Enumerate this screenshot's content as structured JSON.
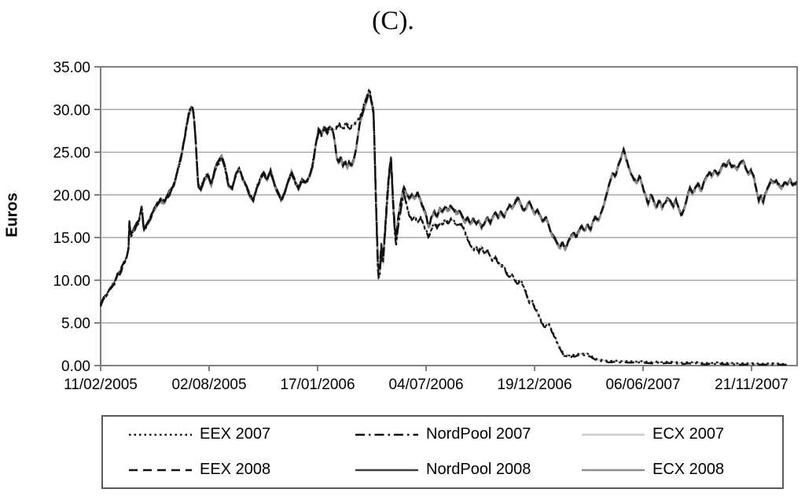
{
  "chart_data": {
    "type": "line",
    "title": "(C).",
    "xlabel": "",
    "ylabel": "Euros",
    "ylim": [
      0,
      35
    ],
    "grid": "horizontal",
    "legend_position": "bottom",
    "yticks": [
      35,
      30,
      25,
      20,
      15,
      10,
      5,
      0
    ],
    "ytick_labels": [
      "35.00",
      "30.00",
      "25.00",
      "20.00",
      "15.00",
      "10.00",
      "5.00",
      "0.00"
    ],
    "xtick_labels": [
      "11/02/2005",
      "02/08/2005",
      "17/01/2006",
      "04/07/2006",
      "19/12/2006",
      "06/06/2007",
      "21/11/2007"
    ],
    "axis_color": "#7f7f7f",
    "grid_color": "#999999",
    "series": [
      {
        "name": "EEX 2007",
        "group": "v2007",
        "color": "#111111",
        "dash": "2.5 4",
        "width": 2.2,
        "offset": 0.06,
        "start_t": 0,
        "end_t": 0.985,
        "z": 5,
        "seed": 11
      },
      {
        "name": "NordPool 2007",
        "group": "v2007",
        "color": "#111111",
        "dash": "12 5 2.5 5",
        "width": 2.2,
        "offset": -0.1,
        "start_t": 0,
        "end_t": 0.985,
        "z": 4,
        "seed": 12
      },
      {
        "name": "ECX 2007",
        "group": "v2007",
        "color": "#cbcbcb",
        "dash": "",
        "width": 2.4,
        "offset": 0,
        "start_t": 0.057,
        "end_t": 0.985,
        "z": 0,
        "seed": 13
      },
      {
        "name": "EEX 2008",
        "group": "v2008",
        "color": "#111111",
        "dash": "11 7",
        "width": 2.4,
        "offset": 0.08,
        "start_t": 0,
        "end_t": 1.0,
        "z": 3,
        "seed": 14
      },
      {
        "name": "NordPool 2008",
        "group": "v2008",
        "color": "#3d3d3d",
        "dash": "",
        "width": 2.0,
        "offset": 0.18,
        "start_t": 0,
        "end_t": 1.0,
        "z": 1,
        "seed": 15
      },
      {
        "name": "ECX 2008",
        "group": "v2008",
        "color": "#8d8d8d",
        "dash": "",
        "width": 2.6,
        "offset": -0.04,
        "start_t": 0.057,
        "end_t": 1.0,
        "z": 2,
        "seed": 16
      }
    ],
    "noise": {
      "group_amp": 0.4,
      "group_smooth": 2,
      "series_amp": 0.1,
      "series_smooth": 1,
      "samples": 800,
      "group_seeds": {
        "v2007": 7,
        "v2008": 8
      }
    },
    "anchors_common": [
      [
        0.0,
        7.2
      ],
      [
        0.004,
        7.8
      ],
      [
        0.008,
        8.1
      ],
      [
        0.012,
        8.9
      ],
      [
        0.016,
        9.3
      ],
      [
        0.02,
        9.7
      ],
      [
        0.024,
        10.7
      ],
      [
        0.028,
        10.9
      ],
      [
        0.032,
        11.9
      ],
      [
        0.036,
        12.3
      ],
      [
        0.04,
        13.5
      ],
      [
        0.0415,
        17.2
      ],
      [
        0.043,
        14.9
      ],
      [
        0.047,
        15.8
      ],
      [
        0.051,
        16.6
      ],
      [
        0.055,
        16.9
      ],
      [
        0.059,
        18.6
      ],
      [
        0.062,
        15.8
      ],
      [
        0.066,
        16.5
      ],
      [
        0.071,
        17.3
      ],
      [
        0.076,
        18.1
      ],
      [
        0.081,
        18.8
      ],
      [
        0.086,
        19.4
      ],
      [
        0.091,
        19.0
      ],
      [
        0.096,
        19.7
      ],
      [
        0.101,
        20.4
      ],
      [
        0.106,
        21.3
      ],
      [
        0.111,
        23.0
      ],
      [
        0.116,
        24.6
      ],
      [
        0.121,
        26.8
      ],
      [
        0.126,
        29.3
      ],
      [
        0.13,
        30.2
      ],
      [
        0.133,
        29.9
      ],
      [
        0.136,
        27.0
      ],
      [
        0.14,
        21.2
      ],
      [
        0.144,
        20.6
      ],
      [
        0.149,
        21.8
      ],
      [
        0.154,
        22.4
      ],
      [
        0.159,
        21.3
      ],
      [
        0.164,
        22.9
      ],
      [
        0.169,
        23.9
      ],
      [
        0.174,
        24.5
      ],
      [
        0.179,
        23.0
      ],
      [
        0.184,
        21.0
      ],
      [
        0.189,
        20.7
      ],
      [
        0.194,
        22.3
      ],
      [
        0.199,
        23.2
      ],
      [
        0.204,
        21.9
      ],
      [
        0.209,
        21.0
      ],
      [
        0.214,
        20.0
      ],
      [
        0.219,
        19.3
      ],
      [
        0.224,
        20.7
      ],
      [
        0.229,
        21.7
      ],
      [
        0.234,
        22.5
      ],
      [
        0.239,
        21.7
      ],
      [
        0.244,
        22.7
      ],
      [
        0.249,
        21.3
      ],
      [
        0.254,
        20.3
      ],
      [
        0.259,
        19.2
      ],
      [
        0.264,
        20.1
      ],
      [
        0.269,
        21.4
      ],
      [
        0.274,
        22.6
      ],
      [
        0.279,
        21.5
      ],
      [
        0.284,
        20.9
      ],
      [
        0.289,
        21.8
      ],
      [
        0.294,
        21.2
      ],
      [
        0.299,
        21.9
      ],
      [
        0.304,
        23.3
      ],
      [
        0.309,
        25.9
      ],
      [
        0.313,
        27.6
      ],
      [
        0.317,
        26.9
      ],
      [
        0.321,
        27.8
      ],
      [
        0.325,
        27.3
      ],
      [
        0.329,
        27.9
      ],
      [
        0.333,
        27.6
      ]
    ],
    "anchors_v2007": [
      [
        0.338,
        27.9
      ],
      [
        0.343,
        28.3
      ],
      [
        0.348,
        27.7
      ],
      [
        0.353,
        28.4
      ],
      [
        0.358,
        27.9
      ],
      [
        0.363,
        28.2
      ],
      [
        0.368,
        28.7
      ],
      [
        0.373,
        29.3
      ],
      [
        0.378,
        30.6
      ],
      [
        0.383,
        31.6
      ],
      [
        0.386,
        32.6
      ],
      [
        0.389,
        31.0
      ],
      [
        0.392,
        29.8
      ],
      [
        0.395,
        20.0
      ],
      [
        0.398,
        11.6
      ],
      [
        0.4,
        9.8
      ],
      [
        0.403,
        13.6
      ],
      [
        0.405,
        11.3
      ],
      [
        0.408,
        14.8
      ],
      [
        0.411,
        18.5
      ],
      [
        0.414,
        22.0
      ],
      [
        0.417,
        24.3
      ],
      [
        0.42,
        18.5
      ],
      [
        0.424,
        13.9
      ],
      [
        0.427,
        16.2
      ],
      [
        0.431,
        18.3
      ],
      [
        0.435,
        20.3
      ],
      [
        0.439,
        19.0
      ],
      [
        0.443,
        17.6
      ],
      [
        0.447,
        17.0
      ],
      [
        0.451,
        17.5
      ],
      [
        0.455,
        16.8
      ],
      [
        0.459,
        17.3
      ],
      [
        0.463,
        16.6
      ],
      [
        0.467,
        16.0
      ],
      [
        0.471,
        15.2
      ],
      [
        0.475,
        16.1
      ],
      [
        0.479,
        16.6
      ],
      [
        0.483,
        16.2
      ],
      [
        0.487,
        16.8
      ],
      [
        0.491,
        16.4
      ],
      [
        0.495,
        17.0
      ],
      [
        0.499,
        16.6
      ],
      [
        0.503,
        17.1
      ],
      [
        0.507,
        16.7
      ],
      [
        0.511,
        16.3
      ],
      [
        0.515,
        16.7
      ],
      [
        0.519,
        16.4
      ],
      [
        0.523,
        15.7
      ],
      [
        0.527,
        14.9
      ],
      [
        0.531,
        14.2
      ],
      [
        0.535,
        13.6
      ],
      [
        0.539,
        14.1
      ],
      [
        0.543,
        13.4
      ],
      [
        0.547,
        13.8
      ],
      [
        0.551,
        13.1
      ],
      [
        0.555,
        13.5
      ],
      [
        0.559,
        12.8
      ],
      [
        0.563,
        12.4
      ],
      [
        0.567,
        12.9
      ],
      [
        0.571,
        12.1
      ],
      [
        0.575,
        11.4
      ],
      [
        0.579,
        11.8
      ],
      [
        0.583,
        11.0
      ],
      [
        0.587,
        10.5
      ],
      [
        0.591,
        10.9
      ],
      [
        0.595,
        10.1
      ],
      [
        0.599,
        9.5
      ],
      [
        0.603,
        9.8
      ],
      [
        0.607,
        9.1
      ],
      [
        0.611,
        8.3
      ],
      [
        0.615,
        7.4
      ],
      [
        0.619,
        7.7
      ],
      [
        0.623,
        6.9
      ],
      [
        0.627,
        6.2
      ],
      [
        0.631,
        5.6
      ],
      [
        0.635,
        5.0
      ],
      [
        0.639,
        4.5
      ],
      [
        0.643,
        4.8
      ],
      [
        0.647,
        4.0
      ],
      [
        0.651,
        3.3
      ],
      [
        0.655,
        2.7
      ],
      [
        0.659,
        2.1
      ],
      [
        0.663,
        1.5
      ],
      [
        0.666,
        1.0
      ],
      [
        0.67,
        1.2
      ],
      [
        0.674,
        1.0
      ],
      [
        0.678,
        1.2
      ],
      [
        0.682,
        1.1
      ],
      [
        0.686,
        1.3
      ],
      [
        0.69,
        1.4
      ],
      [
        0.694,
        1.3
      ],
      [
        0.698,
        1.4
      ],
      [
        0.702,
        1.2
      ],
      [
        0.706,
        1.0
      ],
      [
        0.71,
        0.8
      ],
      [
        0.715,
        0.7
      ],
      [
        0.72,
        0.6
      ],
      [
        0.728,
        0.5
      ],
      [
        0.736,
        0.55
      ],
      [
        0.744,
        0.45
      ],
      [
        0.752,
        0.5
      ],
      [
        0.762,
        0.4
      ],
      [
        0.775,
        0.45
      ],
      [
        0.79,
        0.35
      ],
      [
        0.81,
        0.4
      ],
      [
        0.83,
        0.3
      ],
      [
        0.85,
        0.35
      ],
      [
        0.87,
        0.25
      ],
      [
        0.89,
        0.3
      ],
      [
        0.91,
        0.2
      ],
      [
        0.93,
        0.25
      ],
      [
        0.95,
        0.15
      ],
      [
        0.965,
        0.2
      ],
      [
        0.985,
        0.12
      ]
    ],
    "anchors_v2008": [
      [
        0.336,
        26.5
      ],
      [
        0.339,
        24.2
      ],
      [
        0.342,
        23.6
      ],
      [
        0.345,
        24.3
      ],
      [
        0.348,
        23.4
      ],
      [
        0.351,
        24.0
      ],
      [
        0.354,
        23.2
      ],
      [
        0.357,
        23.8
      ],
      [
        0.36,
        23.3
      ],
      [
        0.363,
        24.1
      ],
      [
        0.366,
        25.0
      ],
      [
        0.369,
        26.6
      ],
      [
        0.372,
        28.4
      ],
      [
        0.376,
        29.6
      ],
      [
        0.38,
        30.6
      ],
      [
        0.383,
        31.2
      ],
      [
        0.386,
        31.9
      ],
      [
        0.389,
        30.6
      ],
      [
        0.392,
        29.4
      ],
      [
        0.395,
        20.0
      ],
      [
        0.398,
        12.2
      ],
      [
        0.4,
        10.6
      ],
      [
        0.403,
        14.0
      ],
      [
        0.405,
        12.0
      ],
      [
        0.408,
        15.2
      ],
      [
        0.411,
        19.0
      ],
      [
        0.414,
        22.4
      ],
      [
        0.417,
        24.4
      ],
      [
        0.42,
        19.0
      ],
      [
        0.424,
        14.6
      ],
      [
        0.427,
        17.0
      ],
      [
        0.431,
        19.2
      ],
      [
        0.435,
        20.8
      ],
      [
        0.439,
        20.0
      ],
      [
        0.443,
        19.6
      ],
      [
        0.447,
        20.2
      ],
      [
        0.451,
        19.5
      ],
      [
        0.455,
        20.1
      ],
      [
        0.459,
        19.3
      ],
      [
        0.463,
        18.6
      ],
      [
        0.467,
        17.6
      ],
      [
        0.471,
        15.9
      ],
      [
        0.475,
        17.3
      ],
      [
        0.479,
        18.1
      ],
      [
        0.483,
        17.5
      ],
      [
        0.487,
        18.3
      ],
      [
        0.491,
        17.9
      ],
      [
        0.495,
        18.5
      ],
      [
        0.499,
        18.1
      ],
      [
        0.503,
        18.6
      ],
      [
        0.507,
        18.1
      ],
      [
        0.511,
        17.6
      ],
      [
        0.515,
        18.0
      ],
      [
        0.519,
        17.4
      ],
      [
        0.523,
        16.9
      ],
      [
        0.527,
        17.4
      ],
      [
        0.531,
        16.7
      ],
      [
        0.535,
        17.1
      ],
      [
        0.539,
        16.4
      ],
      [
        0.543,
        16.8
      ],
      [
        0.547,
        16.1
      ],
      [
        0.551,
        16.6
      ],
      [
        0.555,
        17.2
      ],
      [
        0.559,
        16.6
      ],
      [
        0.563,
        17.3
      ],
      [
        0.567,
        17.9
      ],
      [
        0.571,
        17.3
      ],
      [
        0.575,
        18.0
      ],
      [
        0.579,
        17.4
      ],
      [
        0.583,
        18.2
      ],
      [
        0.587,
        18.9
      ],
      [
        0.591,
        18.3
      ],
      [
        0.595,
        19.0
      ],
      [
        0.599,
        19.6
      ],
      [
        0.603,
        18.8
      ],
      [
        0.607,
        18.1
      ],
      [
        0.611,
        18.6
      ],
      [
        0.615,
        19.3
      ],
      [
        0.619,
        18.4
      ],
      [
        0.623,
        17.6
      ],
      [
        0.627,
        18.1
      ],
      [
        0.631,
        17.3
      ],
      [
        0.635,
        16.7
      ],
      [
        0.639,
        17.2
      ],
      [
        0.643,
        16.4
      ],
      [
        0.647,
        15.6
      ],
      [
        0.651,
        15.0
      ],
      [
        0.655,
        14.3
      ],
      [
        0.659,
        13.6
      ],
      [
        0.663,
        14.2
      ],
      [
        0.667,
        13.5
      ],
      [
        0.671,
        14.4
      ],
      [
        0.675,
        15.1
      ],
      [
        0.679,
        15.6
      ],
      [
        0.683,
        15.0
      ],
      [
        0.687,
        15.7
      ],
      [
        0.691,
        16.3
      ],
      [
        0.695,
        15.8
      ],
      [
        0.699,
        16.5
      ],
      [
        0.703,
        16.0
      ],
      [
        0.707,
        16.8
      ],
      [
        0.711,
        17.3
      ],
      [
        0.715,
        17.0
      ],
      [
        0.719,
        17.8
      ],
      [
        0.723,
        18.8
      ],
      [
        0.727,
        20.0
      ],
      [
        0.731,
        21.4
      ],
      [
        0.735,
        22.6
      ],
      [
        0.739,
        22.0
      ],
      [
        0.743,
        23.4
      ],
      [
        0.747,
        24.2
      ],
      [
        0.751,
        25.2
      ],
      [
        0.755,
        24.0
      ],
      [
        0.758,
        23.3
      ],
      [
        0.762,
        22.4
      ],
      [
        0.766,
        21.6
      ],
      [
        0.77,
        21.3
      ],
      [
        0.774,
        22.0
      ],
      [
        0.778,
        20.8
      ],
      [
        0.782,
        19.8
      ],
      [
        0.786,
        18.9
      ],
      [
        0.79,
        19.8
      ],
      [
        0.794,
        19.2
      ],
      [
        0.798,
        18.4
      ],
      [
        0.802,
        19.1
      ],
      [
        0.806,
        18.3
      ],
      [
        0.81,
        19.0
      ],
      [
        0.814,
        19.7
      ],
      [
        0.818,
        19.1
      ],
      [
        0.822,
        18.5
      ],
      [
        0.826,
        19.2
      ],
      [
        0.83,
        18.3
      ],
      [
        0.834,
        17.4
      ],
      [
        0.838,
        18.4
      ],
      [
        0.842,
        19.6
      ],
      [
        0.846,
        20.6
      ],
      [
        0.85,
        20.1
      ],
      [
        0.854,
        20.8
      ],
      [
        0.858,
        21.2
      ],
      [
        0.862,
        20.4
      ],
      [
        0.866,
        21.1
      ],
      [
        0.87,
        21.9
      ],
      [
        0.874,
        22.6
      ],
      [
        0.878,
        22.1
      ],
      [
        0.882,
        22.9
      ],
      [
        0.886,
        22.4
      ],
      [
        0.89,
        23.0
      ],
      [
        0.894,
        23.6
      ],
      [
        0.898,
        23.1
      ],
      [
        0.902,
        23.8
      ],
      [
        0.906,
        23.2
      ],
      [
        0.91,
        23.5
      ],
      [
        0.914,
        23.0
      ],
      [
        0.918,
        23.6
      ],
      [
        0.922,
        23.8
      ],
      [
        0.926,
        23.0
      ],
      [
        0.93,
        22.4
      ],
      [
        0.934,
        22.8
      ],
      [
        0.938,
        21.9
      ],
      [
        0.942,
        20.3
      ],
      [
        0.945,
        19.1
      ],
      [
        0.948,
        19.9
      ],
      [
        0.951,
        19.2
      ],
      [
        0.954,
        20.2
      ],
      [
        0.958,
        21.0
      ],
      [
        0.962,
        21.6
      ],
      [
        0.966,
        21.2
      ],
      [
        0.97,
        21.7
      ],
      [
        0.974,
        21.2
      ],
      [
        0.978,
        20.7
      ],
      [
        0.982,
        21.4
      ],
      [
        0.986,
        21.1
      ],
      [
        0.99,
        21.6
      ],
      [
        0.994,
        21.0
      ],
      [
        1.0,
        21.4
      ]
    ]
  }
}
